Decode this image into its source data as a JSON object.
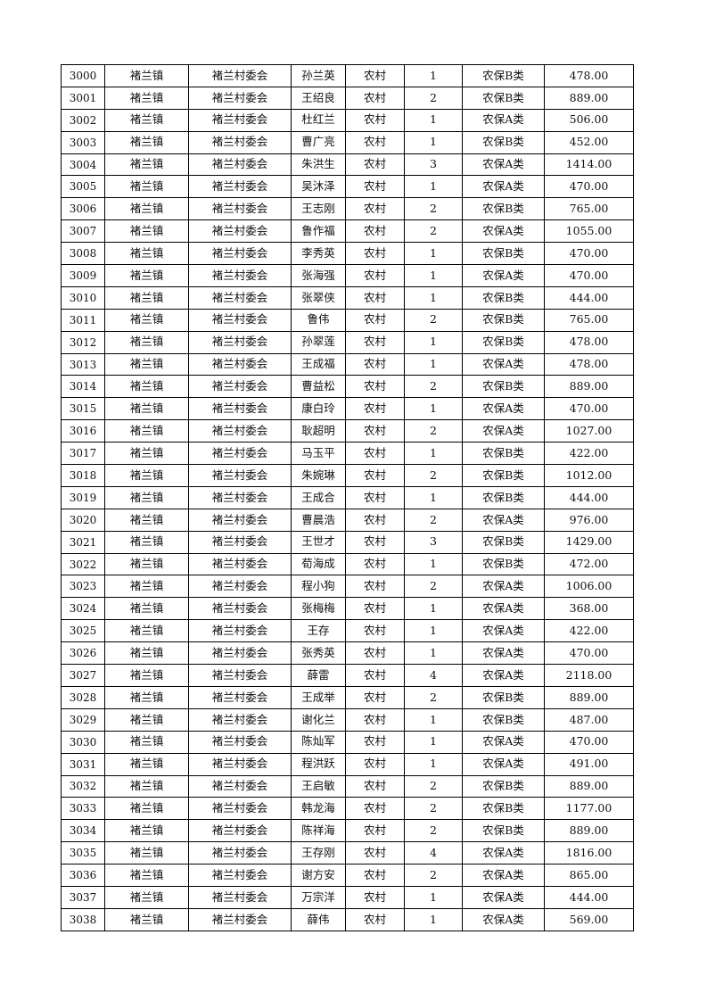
{
  "table": {
    "rows": [
      [
        "3000",
        "褚兰镇",
        "褚兰村委会",
        "孙兰英",
        "农村",
        "1",
        "农保B类",
        "478.00"
      ],
      [
        "3001",
        "褚兰镇",
        "褚兰村委会",
        "王绍良",
        "农村",
        "2",
        "农保B类",
        "889.00"
      ],
      [
        "3002",
        "褚兰镇",
        "褚兰村委会",
        "杜红兰",
        "农村",
        "1",
        "农保A类",
        "506.00"
      ],
      [
        "3003",
        "褚兰镇",
        "褚兰村委会",
        "曹广亮",
        "农村",
        "1",
        "农保B类",
        "452.00"
      ],
      [
        "3004",
        "褚兰镇",
        "褚兰村委会",
        "朱洪生",
        "农村",
        "3",
        "农保A类",
        "1414.00"
      ],
      [
        "3005",
        "褚兰镇",
        "褚兰村委会",
        "吴沐泽",
        "农村",
        "1",
        "农保A类",
        "470.00"
      ],
      [
        "3006",
        "褚兰镇",
        "褚兰村委会",
        "王志刚",
        "农村",
        "2",
        "农保B类",
        "765.00"
      ],
      [
        "3007",
        "褚兰镇",
        "褚兰村委会",
        "鲁作福",
        "农村",
        "2",
        "农保A类",
        "1055.00"
      ],
      [
        "3008",
        "褚兰镇",
        "褚兰村委会",
        "李秀英",
        "农村",
        "1",
        "农保B类",
        "470.00"
      ],
      [
        "3009",
        "褚兰镇",
        "褚兰村委会",
        "张海强",
        "农村",
        "1",
        "农保A类",
        "470.00"
      ],
      [
        "3010",
        "褚兰镇",
        "褚兰村委会",
        "张翠侠",
        "农村",
        "1",
        "农保B类",
        "444.00"
      ],
      [
        "3011",
        "褚兰镇",
        "褚兰村委会",
        "鲁伟",
        "农村",
        "2",
        "农保B类",
        "765.00"
      ],
      [
        "3012",
        "褚兰镇",
        "褚兰村委会",
        "孙翠莲",
        "农村",
        "1",
        "农保B类",
        "478.00"
      ],
      [
        "3013",
        "褚兰镇",
        "褚兰村委会",
        "王成福",
        "农村",
        "1",
        "农保A类",
        "478.00"
      ],
      [
        "3014",
        "褚兰镇",
        "褚兰村委会",
        "曹益松",
        "农村",
        "2",
        "农保B类",
        "889.00"
      ],
      [
        "3015",
        "褚兰镇",
        "褚兰村委会",
        "康白玲",
        "农村",
        "1",
        "农保A类",
        "470.00"
      ],
      [
        "3016",
        "褚兰镇",
        "褚兰村委会",
        "耿超明",
        "农村",
        "2",
        "农保A类",
        "1027.00"
      ],
      [
        "3017",
        "褚兰镇",
        "褚兰村委会",
        "马玉平",
        "农村",
        "1",
        "农保B类",
        "422.00"
      ],
      [
        "3018",
        "褚兰镇",
        "褚兰村委会",
        "朱婉琳",
        "农村",
        "2",
        "农保B类",
        "1012.00"
      ],
      [
        "3019",
        "褚兰镇",
        "褚兰村委会",
        "王成合",
        "农村",
        "1",
        "农保B类",
        "444.00"
      ],
      [
        "3020",
        "褚兰镇",
        "褚兰村委会",
        "曹晨浩",
        "农村",
        "2",
        "农保A类",
        "976.00"
      ],
      [
        "3021",
        "褚兰镇",
        "褚兰村委会",
        "王世才",
        "农村",
        "3",
        "农保B类",
        "1429.00"
      ],
      [
        "3022",
        "褚兰镇",
        "褚兰村委会",
        "荀海成",
        "农村",
        "1",
        "农保B类",
        "472.00"
      ],
      [
        "3023",
        "褚兰镇",
        "褚兰村委会",
        "程小狗",
        "农村",
        "2",
        "农保A类",
        "1006.00"
      ],
      [
        "3024",
        "褚兰镇",
        "褚兰村委会",
        "张梅梅",
        "农村",
        "1",
        "农保A类",
        "368.00"
      ],
      [
        "3025",
        "褚兰镇",
        "褚兰村委会",
        "王存",
        "农村",
        "1",
        "农保A类",
        "422.00"
      ],
      [
        "3026",
        "褚兰镇",
        "褚兰村委会",
        "张秀英",
        "农村",
        "1",
        "农保A类",
        "470.00"
      ],
      [
        "3027",
        "褚兰镇",
        "褚兰村委会",
        "薛雷",
        "农村",
        "4",
        "农保A类",
        "2118.00"
      ],
      [
        "3028",
        "褚兰镇",
        "褚兰村委会",
        "王成举",
        "农村",
        "2",
        "农保B类",
        "889.00"
      ],
      [
        "3029",
        "褚兰镇",
        "褚兰村委会",
        "谢化兰",
        "农村",
        "1",
        "农保B类",
        "487.00"
      ],
      [
        "3030",
        "褚兰镇",
        "褚兰村委会",
        "陈灿军",
        "农村",
        "1",
        "农保A类",
        "470.00"
      ],
      [
        "3031",
        "褚兰镇",
        "褚兰村委会",
        "程洪跃",
        "农村",
        "1",
        "农保A类",
        "491.00"
      ],
      [
        "3032",
        "褚兰镇",
        "褚兰村委会",
        "王启敏",
        "农村",
        "2",
        "农保B类",
        "889.00"
      ],
      [
        "3033",
        "褚兰镇",
        "褚兰村委会",
        "韩龙海",
        "农村",
        "2",
        "农保B类",
        "1177.00"
      ],
      [
        "3034",
        "褚兰镇",
        "褚兰村委会",
        "陈祥海",
        "农村",
        "2",
        "农保B类",
        "889.00"
      ],
      [
        "3035",
        "褚兰镇",
        "褚兰村委会",
        "王存刚",
        "农村",
        "4",
        "农保A类",
        "1816.00"
      ],
      [
        "3036",
        "褚兰镇",
        "褚兰村委会",
        "谢方安",
        "农村",
        "2",
        "农保A类",
        "865.00"
      ],
      [
        "3037",
        "褚兰镇",
        "褚兰村委会",
        "万宗洋",
        "农村",
        "1",
        "农保A类",
        "444.00"
      ],
      [
        "3038",
        "褚兰镇",
        "褚兰村委会",
        "薛伟",
        "农村",
        "1",
        "农保A类",
        "569.00"
      ]
    ]
  }
}
